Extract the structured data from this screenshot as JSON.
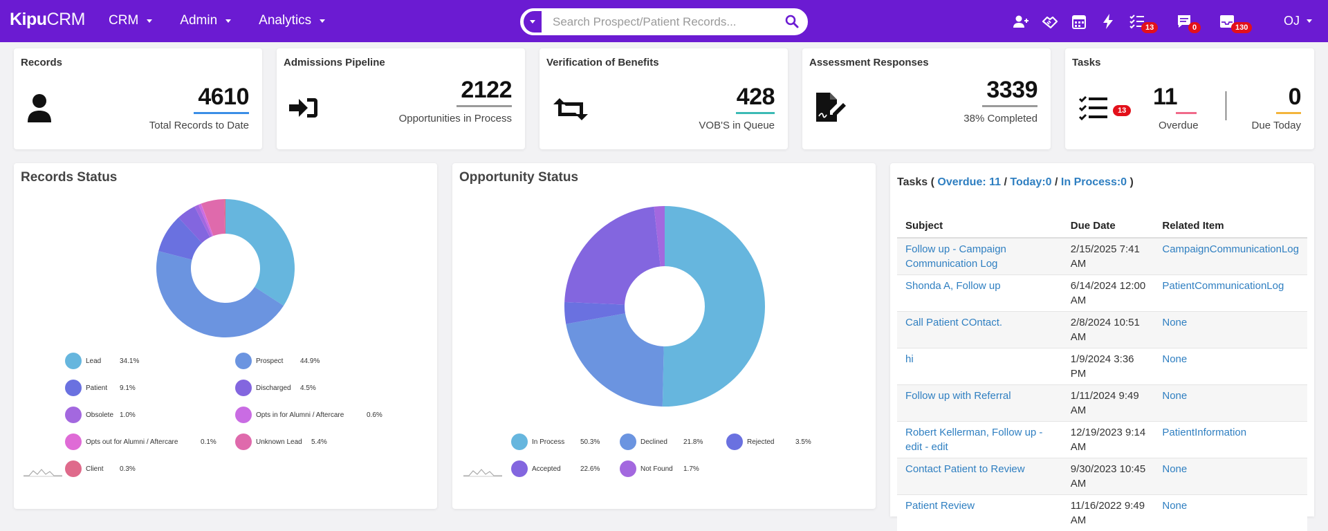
{
  "brand": {
    "part1": "Kipu",
    "part2": "CRM"
  },
  "nav": {
    "items": [
      {
        "label": "CRM"
      },
      {
        "label": "Admin"
      },
      {
        "label": "Analytics"
      }
    ],
    "search_placeholder": "Search Prospect/Patient Records...",
    "badges": {
      "tasks": "13",
      "messages": "0",
      "inbox": "130"
    },
    "user": "OJ"
  },
  "cards": {
    "records": {
      "title": "Records",
      "value": "4610",
      "sub": "Total Records to Date",
      "accent": "#3a8ee6"
    },
    "pipeline": {
      "title": "Admissions Pipeline",
      "value": "2122",
      "sub": "Opportunities in Process",
      "accent": "#9a9a9a"
    },
    "vob": {
      "title": "Verification of Benefits",
      "value": "428",
      "sub": "VOB'S in Queue",
      "accent": "#3bbab5"
    },
    "assessment": {
      "title": "Assessment Responses",
      "value": "3339",
      "sub": "38% Completed",
      "accent": "#9a9a9a"
    },
    "tasks": {
      "title": "Tasks",
      "badge": "13",
      "overdue_value": "11",
      "overdue_label": "Overdue",
      "overdue_accent": "#f06a8a",
      "today_value": "0",
      "today_label": "Due Today",
      "today_accent": "#f3b53c"
    }
  },
  "records_status": {
    "title": "Records Status",
    "chart_data": {
      "type": "pie",
      "title": "Records Status",
      "categories": [
        "Lead",
        "Prospect",
        "Patient",
        "Discharged",
        "Obsolete",
        "Opts in for Alumni / Aftercare",
        "Opts out for Alumni / Aftercare",
        "Unknown Lead",
        "Client"
      ],
      "values": [
        34.1,
        44.9,
        9.1,
        4.5,
        1.0,
        0.6,
        0.1,
        5.4,
        0.3
      ],
      "labels": [
        "34.1%",
        "44.9%",
        "9.1%",
        "4.5%",
        "1.0%",
        "0.6%",
        "0.1%",
        "5.4%",
        "0.3%"
      ],
      "colors": [
        "#66b6de",
        "#6b94e0",
        "#6a71e0",
        "#8366df",
        "#a368df",
        "#c96ce3",
        "#df6bd6",
        "#df6aac",
        "#df6a8b"
      ],
      "legend": "bottom"
    }
  },
  "opportunity_status": {
    "title": "Opportunity Status",
    "chart_data": {
      "type": "pie",
      "title": "Opportunity Status",
      "categories": [
        "In Process",
        "Declined",
        "Rejected",
        "Accepted",
        "Not Found"
      ],
      "values": [
        50.3,
        21.8,
        3.5,
        22.6,
        1.7
      ],
      "labels": [
        "50.3%",
        "21.8%",
        "3.5%",
        "22.6%",
        "1.7%"
      ],
      "colors": [
        "#66b6de",
        "#6b94e0",
        "#6a71e0",
        "#8366df",
        "#a368df"
      ],
      "legend": "bottom"
    }
  },
  "tasks_panel": {
    "label": "Tasks",
    "open_paren": "(",
    "overdue": "Overdue: 11",
    "sep1": "/",
    "today": "Today:0",
    "sep2": "/",
    "in_process": "In Process:0",
    "close_paren": ")",
    "columns": [
      "Subject",
      "Due Date",
      "Related Item"
    ],
    "rows": [
      {
        "subject": "Follow up - Campaign Communication Log",
        "due": "2/15/2025 7:41 AM",
        "related": "CampaignCommunicationLog"
      },
      {
        "subject": "Shonda A, Follow up",
        "due": "6/14/2024 12:00 AM",
        "related": "PatientCommunicationLog"
      },
      {
        "subject": "Call Patient COntact.",
        "due": "2/8/2024 10:51 AM",
        "related": "None"
      },
      {
        "subject": "hi",
        "due": "1/9/2024 3:36 PM",
        "related": "None"
      },
      {
        "subject": "Follow up with Referral",
        "due": "1/11/2024 9:49 AM",
        "related": "None"
      },
      {
        "subject": "Robert Kellerman, Follow up - edit - edit",
        "due": "12/19/2023 9:14 AM",
        "related": "PatientInformation"
      },
      {
        "subject": "Contact Patient to Review",
        "due": "9/30/2023 10:45 AM",
        "related": "None"
      },
      {
        "subject": "Patient Review",
        "due": "11/16/2022 9:49 AM",
        "related": "None"
      }
    ]
  }
}
